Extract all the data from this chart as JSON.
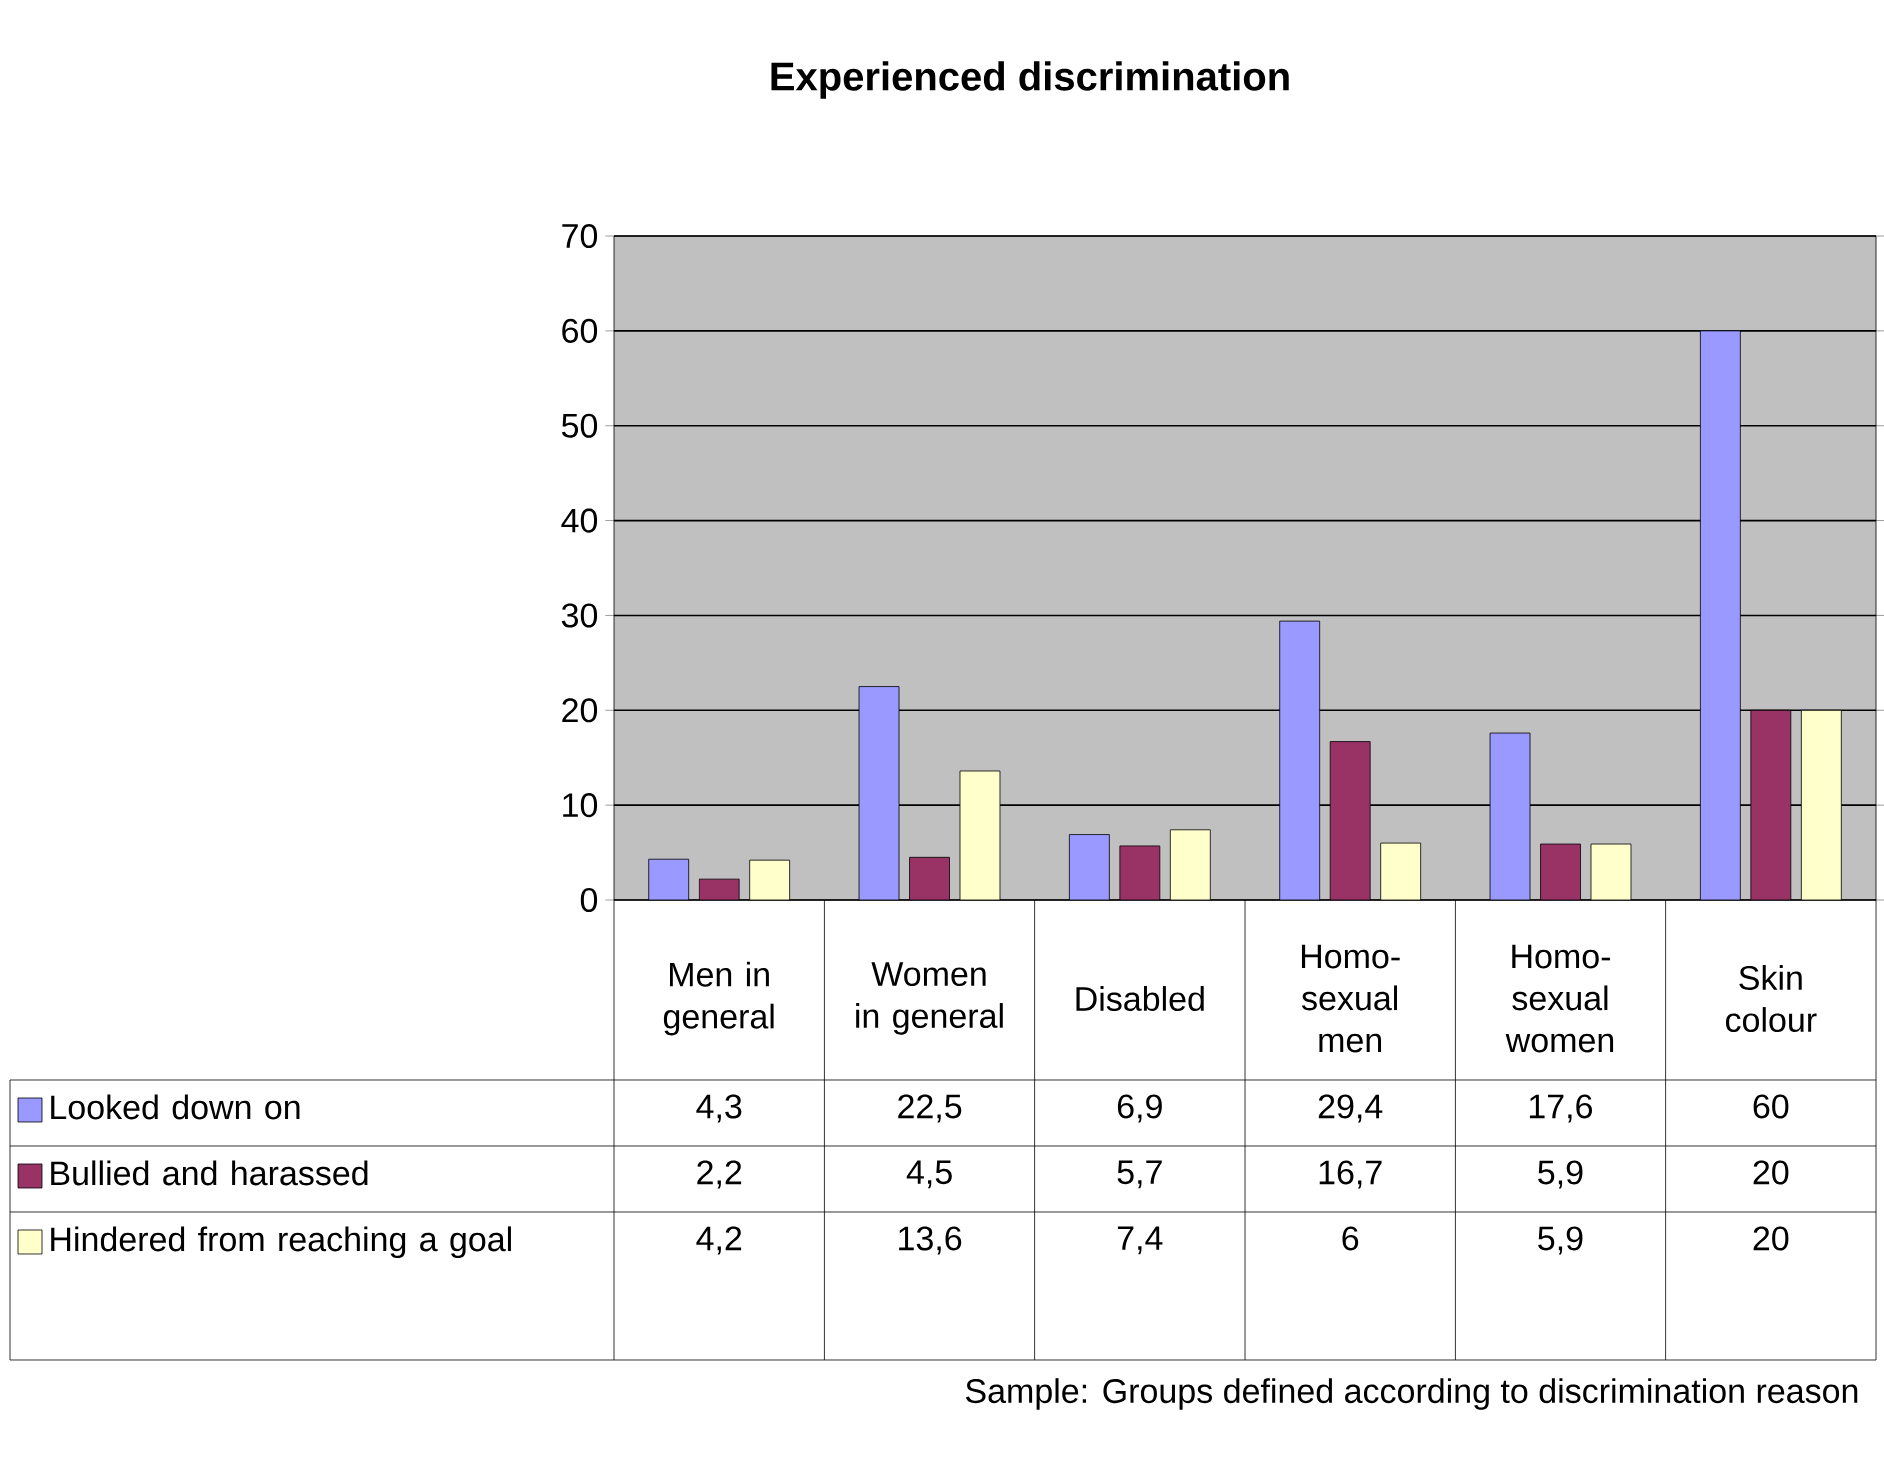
{
  "chart_data": {
    "type": "bar",
    "title": "Experienced discrimination",
    "categories": [
      "Men in general",
      "Women in general",
      "Disabled",
      "Homo-sexual men",
      "Homo-sexual women",
      "Skin colour"
    ],
    "series": [
      {
        "name": "Looked down on",
        "color": "#9999ff",
        "values": [
          4.3,
          22.5,
          6.9,
          29.4,
          17.6,
          60
        ],
        "value_labels": [
          "4,3",
          "22,5",
          "6,9",
          "29,4",
          "17,6",
          "60"
        ]
      },
      {
        "name": "Bullied and harassed",
        "color": "#993366",
        "values": [
          2.2,
          4.5,
          5.7,
          16.7,
          5.9,
          20
        ],
        "value_labels": [
          "2,2",
          "4,5",
          "5,7",
          "16,7",
          "5,9",
          "20"
        ]
      },
      {
        "name": "Hindered from reaching a goal",
        "color": "#ffffcc",
        "values": [
          4.2,
          13.6,
          7.4,
          6,
          5.9,
          20
        ],
        "value_labels": [
          "4,2",
          "13,6",
          "7,4",
          "6",
          "5,9",
          "20"
        ]
      }
    ],
    "ylim": [
      0,
      70
    ],
    "yticks": [
      0,
      10,
      20,
      30,
      40,
      50,
      60,
      70
    ],
    "grid": "y",
    "legend": "bottom left",
    "annotations": [
      "Sample: Groups defined according to discrimination reason"
    ]
  }
}
